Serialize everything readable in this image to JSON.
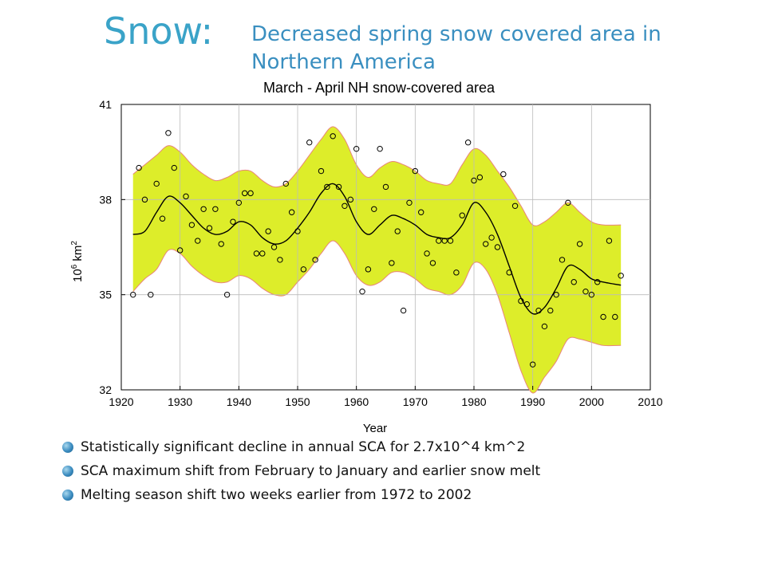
{
  "slide": {
    "title": "Snow:",
    "subtitle": "Decreased spring snow covered area in Northern America"
  },
  "bullets": [
    "Statistically significant decline in annual SCA for 2.7x10^4 km^2",
    "SCA maximum shift from February to January and earlier snow melt",
    "Melting season shift two weeks earlier from 1972 to 2002"
  ],
  "colors": {
    "title": "#3aa3c8",
    "band_fill": "#dded2a",
    "band_edge": "#e8857a",
    "line": "#000000",
    "bullet": "#3b8cc0"
  },
  "chart_data": {
    "type": "scatter",
    "title": "March - April NH snow-covered area",
    "xlabel": "Year",
    "ylabel": "10^6 km^2",
    "xlim": [
      1920,
      2010
    ],
    "ylim": [
      32,
      41
    ],
    "xticks": [
      1920,
      1930,
      1940,
      1950,
      1960,
      1970,
      1980,
      1990,
      2000,
      2010
    ],
    "yticks": [
      32,
      35,
      38,
      41
    ],
    "grid": true,
    "series": [
      {
        "kind": "points",
        "x": [
          1922,
          1923,
          1924,
          1925,
          1926,
          1927,
          1928,
          1929,
          1930,
          1931,
          1932,
          1933,
          1934,
          1935,
          1936,
          1937,
          1938,
          1939,
          1940,
          1941,
          1942,
          1943,
          1944,
          1945,
          1946,
          1947,
          1948,
          1949,
          1950,
          1951,
          1952,
          1953,
          1954,
          1955,
          1956,
          1957,
          1958,
          1959,
          1960,
          1961,
          1962,
          1963,
          1964,
          1965,
          1966,
          1967,
          1968,
          1969,
          1970,
          1971,
          1972,
          1973,
          1974,
          1975,
          1976,
          1977,
          1978,
          1979,
          1980,
          1981,
          1982,
          1983,
          1984,
          1985,
          1986,
          1987,
          1988,
          1989,
          1990,
          1991,
          1992,
          1993,
          1994,
          1995,
          1996,
          1997,
          1998,
          1999,
          2000,
          2001,
          2002,
          2003,
          2004,
          2005
        ],
        "y": [
          35.0,
          39.0,
          38.0,
          35.0,
          38.5,
          37.4,
          40.1,
          39.0,
          36.4,
          38.1,
          37.2,
          36.7,
          37.7,
          37.1,
          37.7,
          36.6,
          35.0,
          37.3,
          37.9,
          38.2,
          38.2,
          36.3,
          36.3,
          37.0,
          36.5,
          36.1,
          38.5,
          37.6,
          37.0,
          35.8,
          39.8,
          36.1,
          38.9,
          38.4,
          40.0,
          38.4,
          37.8,
          38.0,
          39.6,
          35.1,
          35.8,
          37.7,
          39.6,
          38.4,
          36.0,
          37.0,
          34.5,
          37.9,
          38.9,
          37.6,
          36.3,
          36.0,
          36.7,
          36.7,
          36.7,
          35.7,
          37.5,
          39.8,
          38.6,
          38.7,
          36.6,
          36.8,
          36.5,
          38.8,
          35.7,
          37.8,
          34.8,
          34.7,
          32.8,
          34.5,
          34.0,
          34.5,
          35.0,
          36.1,
          37.9,
          35.4,
          36.6,
          35.1,
          35.0,
          35.4,
          34.3,
          36.7,
          34.3,
          35.6
        ]
      },
      {
        "kind": "smoothed-line",
        "x": [
          1922,
          1924,
          1926,
          1928,
          1930,
          1932,
          1934,
          1936,
          1938,
          1940,
          1942,
          1944,
          1946,
          1948,
          1950,
          1952,
          1954,
          1956,
          1958,
          1960,
          1962,
          1964,
          1966,
          1968,
          1970,
          1972,
          1974,
          1976,
          1978,
          1980,
          1982,
          1984,
          1986,
          1988,
          1990,
          1992,
          1994,
          1996,
          1998,
          2000,
          2002,
          2005
        ],
        "y": [
          36.9,
          37.0,
          37.6,
          38.1,
          37.9,
          37.5,
          37.1,
          36.9,
          37.0,
          37.3,
          37.2,
          36.8,
          36.6,
          36.7,
          37.1,
          37.6,
          38.2,
          38.5,
          38.1,
          37.3,
          36.9,
          37.2,
          37.5,
          37.4,
          37.2,
          36.9,
          36.8,
          36.8,
          37.2,
          37.9,
          37.6,
          36.9,
          35.9,
          34.9,
          34.4,
          34.6,
          35.2,
          35.9,
          35.8,
          35.5,
          35.4,
          35.3
        ]
      },
      {
        "kind": "uncertainty-band",
        "x": [
          1922,
          1924,
          1926,
          1928,
          1930,
          1932,
          1934,
          1936,
          1938,
          1940,
          1942,
          1944,
          1946,
          1948,
          1950,
          1952,
          1954,
          1956,
          1958,
          1960,
          1962,
          1964,
          1966,
          1968,
          1970,
          1972,
          1974,
          1976,
          1978,
          1980,
          1982,
          1984,
          1986,
          1988,
          1990,
          1992,
          1994,
          1996,
          1998,
          2000,
          2002,
          2005
        ],
        "upper": [
          38.8,
          39.1,
          39.4,
          39.7,
          39.5,
          39.1,
          38.8,
          38.6,
          38.7,
          38.9,
          38.9,
          38.6,
          38.4,
          38.5,
          38.9,
          39.4,
          39.9,
          40.3,
          39.9,
          39.1,
          38.7,
          39.0,
          39.2,
          39.1,
          38.9,
          38.6,
          38.5,
          38.5,
          39.1,
          39.6,
          39.4,
          38.9,
          38.4,
          37.8,
          37.2,
          37.3,
          37.6,
          37.9,
          37.6,
          37.3,
          37.2,
          37.2
        ],
        "lower": [
          35.1,
          35.5,
          35.8,
          36.4,
          36.3,
          35.9,
          35.6,
          35.4,
          35.4,
          35.6,
          35.5,
          35.2,
          35.0,
          35.0,
          35.4,
          35.8,
          36.3,
          36.7,
          36.3,
          35.6,
          35.3,
          35.4,
          35.7,
          35.7,
          35.5,
          35.2,
          35.1,
          35.0,
          35.3,
          36.0,
          35.8,
          35.0,
          33.8,
          32.6,
          31.9,
          32.4,
          32.9,
          33.6,
          33.6,
          33.5,
          33.4,
          33.4
        ]
      }
    ]
  }
}
